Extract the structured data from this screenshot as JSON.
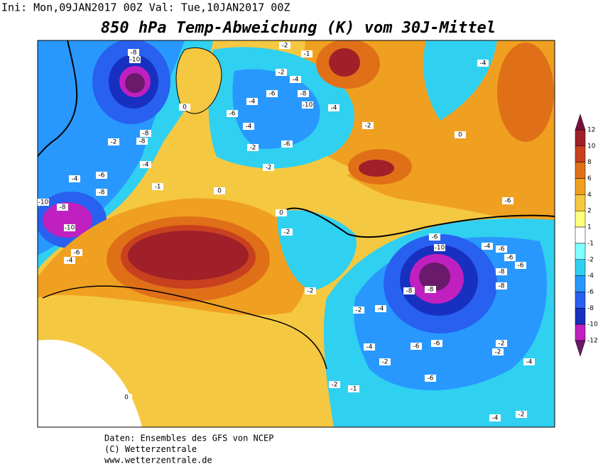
{
  "header": {
    "run_info": "Ini: Mon,09JAN2017 00Z Val: Tue,10JAN2017 00Z",
    "title": "850 hPa Temp-Abweichung (K) vom 30J-Mittel"
  },
  "colorbar": {
    "levels": [
      12,
      10,
      8,
      6,
      4,
      2,
      1,
      -1,
      -2,
      -4,
      -6,
      -8,
      -10,
      -12
    ],
    "colors": [
      "#7a1040",
      "#a0202a",
      "#c8401e",
      "#e07018",
      "#f0a020",
      "#f5c842",
      "#ffff80",
      "#ffffff",
      "#80ffff",
      "#30d0f0",
      "#2898ff",
      "#2860f0",
      "#1830c0",
      "#c020c0",
      "#6a1a6a"
    ]
  },
  "map": {
    "contour_labels": [
      -8,
      -10,
      -8,
      -8,
      -2,
      -4,
      -1,
      -6,
      -4,
      -8,
      -10,
      -8,
      -10,
      -6,
      -4,
      -2,
      -1,
      -2,
      -4,
      -6,
      -8,
      -10,
      -4,
      -6,
      -4,
      -6,
      -2,
      -2,
      -4,
      -2,
      -4,
      -6,
      -2,
      -2,
      -6,
      -10,
      -4,
      -6,
      -6,
      -6,
      -8,
      -8,
      -8,
      -8,
      -4,
      -2,
      -6,
      -6,
      -4,
      -2,
      -6,
      -2,
      -1,
      -2,
      -2,
      -4,
      -2,
      -4,
      0,
      0,
      0,
      0,
      0
    ]
  },
  "footer": {
    "lines": [
      "Daten: Ensembles des GFS von NCEP",
      "(C) Wetterzentrale",
      "www.wetterzentrale.de"
    ]
  }
}
